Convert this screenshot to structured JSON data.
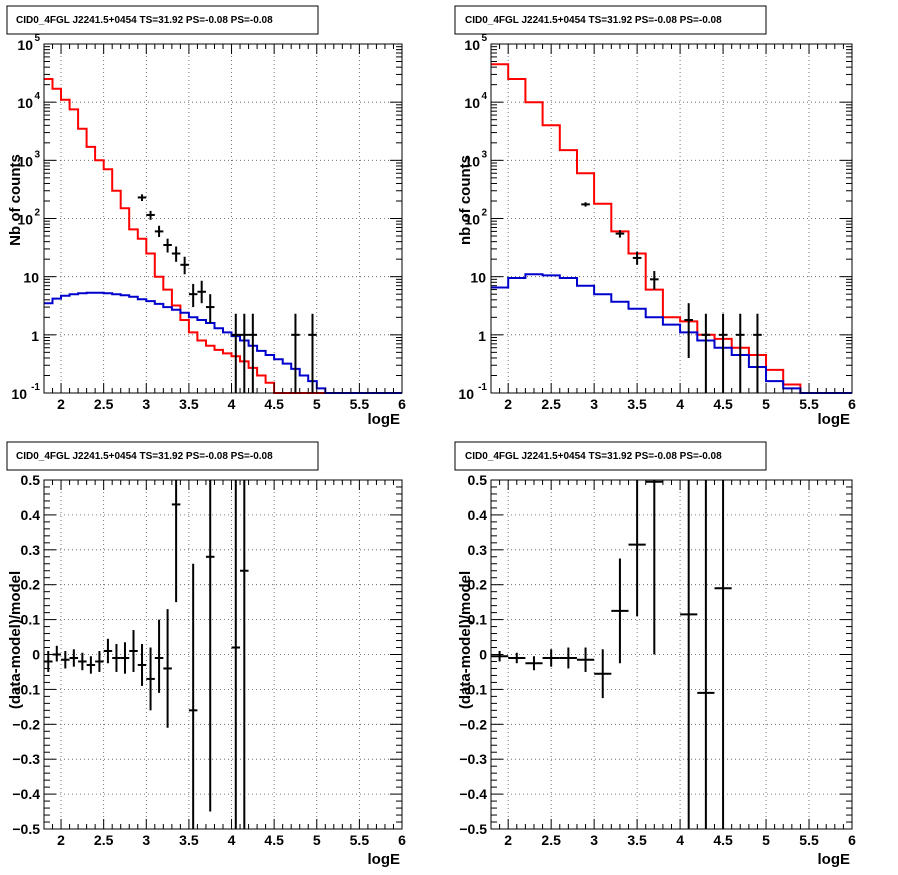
{
  "chart_data": [
    {
      "type": "line",
      "panel": "top-left",
      "title": "CID0_4FGL J2241.5+0454 TS=31.92 PS=-0.08 PS=-0.08",
      "xlabel": "logE",
      "ylabel": "Nb of counts",
      "xlim": [
        1.8,
        6.0
      ],
      "ylim": [
        0.1,
        100000
      ],
      "log_y": true,
      "grid": true,
      "x_ticks": [
        "2",
        "2.5",
        "3",
        "3.5",
        "4",
        "4.5",
        "5",
        "5.5",
        "6"
      ],
      "y_ticks": [
        {
          "base": "10",
          "exp": "-1"
        },
        {
          "base": "1",
          "exp": ""
        },
        {
          "base": "10",
          "exp": ""
        },
        {
          "base": "10",
          "exp": "2"
        },
        {
          "base": "10",
          "exp": "3"
        },
        {
          "base": "10",
          "exp": "4"
        },
        {
          "base": "10",
          "exp": "5"
        }
      ],
      "edges": [
        1.8,
        1.9,
        2.0,
        2.1,
        2.2,
        2.3,
        2.4,
        2.5,
        2.6,
        2.7,
        2.8,
        2.9,
        3.0,
        3.1,
        3.2,
        3.3,
        3.4,
        3.5,
        3.6,
        3.7,
        3.8,
        3.9,
        4.0,
        4.1,
        4.2,
        4.3,
        4.4,
        4.5,
        4.6,
        4.7,
        4.8,
        4.9,
        5.0,
        5.1,
        5.2,
        5.3,
        5.4,
        5.5,
        5.6,
        5.7,
        5.8,
        5.9,
        6.0
      ],
      "series": [
        {
          "color": "#ff0000",
          "kind": "step",
          "values": [
            25000,
            17000,
            11000,
            7500,
            3500,
            1700,
            1000,
            700,
            300,
            150,
            65,
            45,
            25,
            10,
            6,
            3.2,
            1.8,
            1.1,
            0.8,
            0.65,
            0.55,
            0.48,
            0.43,
            0.35,
            0.27,
            0.2,
            0.15,
            0.1,
            0.1,
            0.1,
            0.1,
            0.1,
            0.1,
            0.1,
            0.1,
            0.1,
            0.1,
            0.1,
            0.1,
            0.1,
            0.1,
            0.1
          ]
        },
        {
          "color": "#0000cc",
          "kind": "step",
          "values": [
            3.5,
            4.2,
            4.7,
            5.0,
            5.2,
            5.3,
            5.3,
            5.2,
            5.0,
            4.8,
            4.5,
            4.1,
            3.8,
            3.4,
            3.0,
            2.7,
            2.4,
            2.0,
            1.8,
            1.6,
            1.3,
            1.1,
            0.95,
            0.8,
            0.65,
            0.53,
            0.45,
            0.38,
            0.32,
            0.26,
            0.2,
            0.16,
            0.12,
            0.1,
            0.1,
            0.1,
            0.1,
            0.1,
            0.1,
            0.1,
            0.1,
            0.1
          ]
        },
        {
          "color": "#000000",
          "kind": "points",
          "points": [
            {
              "x": 2.95,
              "y": 230,
              "lo": 200,
              "hi": 260
            },
            {
              "x": 3.05,
              "y": 115,
              "lo": 95,
              "hi": 135
            },
            {
              "x": 3.15,
              "y": 60,
              "lo": 48,
              "hi": 75
            },
            {
              "x": 3.25,
              "y": 35,
              "lo": 26,
              "hi": 45
            },
            {
              "x": 3.35,
              "y": 25,
              "lo": 18,
              "hi": 33
            },
            {
              "x": 3.45,
              "y": 16,
              "lo": 11,
              "hi": 22
            },
            {
              "x": 3.55,
              "y": 5.0,
              "lo": 3.0,
              "hi": 7.5
            },
            {
              "x": 3.65,
              "y": 5.5,
              "lo": 3.5,
              "hi": 8.5
            },
            {
              "x": 3.75,
              "y": 3.0,
              "lo": 1.6,
              "hi": 5.0
            },
            {
              "x": 4.05,
              "y": 1.0,
              "lo": 0.1,
              "hi": 2.3
            },
            {
              "x": 4.15,
              "y": 1.0,
              "lo": 0.1,
              "hi": 2.3
            },
            {
              "x": 4.25,
              "y": 1.0,
              "lo": 0.1,
              "hi": 2.3
            },
            {
              "x": 4.75,
              "y": 1.0,
              "lo": 0.1,
              "hi": 2.3
            },
            {
              "x": 4.95,
              "y": 1.0,
              "lo": 0.1,
              "hi": 2.3
            }
          ]
        }
      ]
    },
    {
      "type": "line",
      "panel": "top-right",
      "title": "CID0_4FGL J2241.5+0454 TS=31.92 PS=-0.08 PS=-0.08",
      "xlabel": "logE",
      "ylabel": "nb of counts",
      "xlim": [
        1.8,
        6.0
      ],
      "ylim": [
        0.1,
        100000
      ],
      "log_y": true,
      "grid": true,
      "x_ticks": [
        "2",
        "2.5",
        "3",
        "3.5",
        "4",
        "4.5",
        "5",
        "5.5",
        "6"
      ],
      "y_ticks": [
        {
          "base": "10",
          "exp": "-1"
        },
        {
          "base": "1",
          "exp": ""
        },
        {
          "base": "10",
          "exp": ""
        },
        {
          "base": "10",
          "exp": "2"
        },
        {
          "base": "10",
          "exp": "3"
        },
        {
          "base": "10",
          "exp": "4"
        },
        {
          "base": "10",
          "exp": "5"
        }
      ],
      "edges": [
        1.8,
        2.0,
        2.2,
        2.4,
        2.6,
        2.8,
        3.0,
        3.2,
        3.4,
        3.6,
        3.8,
        4.0,
        4.2,
        4.4,
        4.6,
        4.8,
        5.0,
        5.2,
        5.4,
        5.6,
        5.8,
        6.0
      ],
      "series": [
        {
          "color": "#ff0000",
          "kind": "step",
          "values": [
            45000,
            25000,
            10000,
            4000,
            1500,
            600,
            180,
            60,
            25,
            6,
            2,
            1.7,
            1.0,
            0.85,
            0.6,
            0.45,
            0.25,
            0.14,
            0.1,
            0.1,
            0.1
          ]
        },
        {
          "color": "#0000cc",
          "kind": "step",
          "values": [
            6.5,
            9.5,
            11,
            10.5,
            9.5,
            7,
            5,
            3.7,
            2.8,
            2.0,
            1.5,
            1.1,
            0.8,
            0.6,
            0.45,
            0.28,
            0.16,
            0.12,
            0.1,
            0.1,
            0.1
          ]
        },
        {
          "color": "#000000",
          "kind": "points",
          "points": [
            {
              "x": 2.9,
              "y": 175,
              "lo": 160,
              "hi": 190
            },
            {
              "x": 3.3,
              "y": 55,
              "lo": 47,
              "hi": 63
            },
            {
              "x": 3.5,
              "y": 21,
              "lo": 16,
              "hi": 27
            },
            {
              "x": 3.7,
              "y": 9,
              "lo": 6,
              "hi": 12.5
            },
            {
              "x": 4.1,
              "y": 1.8,
              "lo": 0.4,
              "hi": 3.5
            },
            {
              "x": 4.3,
              "y": 1.0,
              "lo": 0.1,
              "hi": 2.3
            },
            {
              "x": 4.5,
              "y": 1.0,
              "lo": 0.1,
              "hi": 2.3
            },
            {
              "x": 4.7,
              "y": 1.0,
              "lo": 0.1,
              "hi": 2.3
            },
            {
              "x": 4.9,
              "y": 1.0,
              "lo": 0.1,
              "hi": 2.3
            }
          ]
        }
      ]
    },
    {
      "type": "scatter",
      "panel": "bottom-left",
      "title": "CID0_4FGL J2241.5+0454 TS=31.92 PS=-0.08 PS=-0.08",
      "xlabel": "logE",
      "ylabel": "(data-model)/model",
      "xlim": [
        1.8,
        6.0
      ],
      "ylim": [
        -0.5,
        0.5
      ],
      "grid": true,
      "x_ticks": [
        "2",
        "2.5",
        "3",
        "3.5",
        "4",
        "4.5",
        "5",
        "5.5",
        "6"
      ],
      "y_ticks": [
        "−0.5",
        "−0.4",
        "−0.3",
        "−0.2",
        "−0.1",
        "0",
        "0.1",
        "0.2",
        "0.3",
        "0.4",
        "0.5"
      ],
      "bin_width": 0.1,
      "series": [
        {
          "color": "#000000",
          "kind": "errorbars",
          "points": [
            {
              "x": 1.85,
              "y": -0.02,
              "lo": -0.05,
              "hi": 0.01
            },
            {
              "x": 1.95,
              "y": 0.0,
              "lo": -0.02,
              "hi": 0.025
            },
            {
              "x": 2.05,
              "y": -0.015,
              "lo": -0.04,
              "hi": 0.01
            },
            {
              "x": 2.15,
              "y": -0.01,
              "lo": -0.035,
              "hi": 0.015
            },
            {
              "x": 2.25,
              "y": -0.02,
              "lo": -0.045,
              "hi": 0.005
            },
            {
              "x": 2.35,
              "y": -0.03,
              "lo": -0.055,
              "hi": -0.005
            },
            {
              "x": 2.45,
              "y": -0.02,
              "lo": -0.05,
              "hi": 0.01
            },
            {
              "x": 2.55,
              "y": 0.01,
              "lo": -0.025,
              "hi": 0.045
            },
            {
              "x": 2.65,
              "y": -0.01,
              "lo": -0.05,
              "hi": 0.03
            },
            {
              "x": 2.75,
              "y": -0.01,
              "lo": -0.055,
              "hi": 0.035
            },
            {
              "x": 2.85,
              "y": 0.01,
              "lo": -0.05,
              "hi": 0.07
            },
            {
              "x": 2.95,
              "y": -0.03,
              "lo": -0.09,
              "hi": 0.03
            },
            {
              "x": 3.05,
              "y": -0.07,
              "lo": -0.16,
              "hi": 0.02
            },
            {
              "x": 3.15,
              "y": -0.01,
              "lo": -0.11,
              "hi": 0.1
            },
            {
              "x": 3.25,
              "y": -0.04,
              "lo": -0.21,
              "hi": 0.13
            },
            {
              "x": 3.35,
              "y": 0.43,
              "lo": 0.15,
              "hi": 0.5
            },
            {
              "x": 3.55,
              "y": -0.16,
              "lo": -0.5,
              "hi": 0.26
            },
            {
              "x": 3.75,
              "y": 0.28,
              "lo": -0.45,
              "hi": 0.5
            },
            {
              "x": 4.05,
              "y": 0.02,
              "lo": -0.5,
              "hi": 0.5
            },
            {
              "x": 4.15,
              "y": 0.24,
              "lo": -0.5,
              "hi": 0.5
            }
          ]
        }
      ]
    },
    {
      "type": "scatter",
      "panel": "bottom-right",
      "title": "CID0_4FGL J2241.5+0454 TS=31.92 PS=-0.08 PS=-0.08",
      "xlabel": "logE",
      "ylabel": "(data-model)/model",
      "xlim": [
        1.8,
        6.0
      ],
      "ylim": [
        -0.5,
        0.5
      ],
      "grid": true,
      "x_ticks": [
        "2",
        "2.5",
        "3",
        "3.5",
        "4",
        "4.5",
        "5",
        "5.5",
        "6"
      ],
      "y_ticks": [
        "−0.5",
        "−0.4",
        "−0.3",
        "−0.2",
        "−0.1",
        "0",
        "0.1",
        "0.2",
        "0.3",
        "0.4",
        "0.5"
      ],
      "bin_width": 0.2,
      "series": [
        {
          "color": "#000000",
          "kind": "errorbars",
          "points": [
            {
              "x": 1.9,
              "y": -0.005,
              "lo": -0.02,
              "hi": 0.01
            },
            {
              "x": 2.1,
              "y": -0.01,
              "lo": -0.025,
              "hi": 0.005
            },
            {
              "x": 2.3,
              "y": -0.025,
              "lo": -0.045,
              "hi": -0.005
            },
            {
              "x": 2.5,
              "y": -0.01,
              "lo": -0.035,
              "hi": 0.015
            },
            {
              "x": 2.7,
              "y": -0.01,
              "lo": -0.04,
              "hi": 0.02
            },
            {
              "x": 2.9,
              "y": -0.015,
              "lo": -0.05,
              "hi": 0.02
            },
            {
              "x": 3.1,
              "y": -0.055,
              "lo": -0.125,
              "hi": 0.015
            },
            {
              "x": 3.3,
              "y": 0.125,
              "lo": -0.025,
              "hi": 0.275
            },
            {
              "x": 3.5,
              "y": 0.315,
              "lo": 0.11,
              "hi": 0.5
            },
            {
              "x": 3.7,
              "y": 0.495,
              "lo": 0.0,
              "hi": 0.5
            },
            {
              "x": 4.1,
              "y": 0.115,
              "lo": -0.5,
              "hi": 0.5
            },
            {
              "x": 4.3,
              "y": -0.11,
              "lo": -0.5,
              "hi": 0.5
            },
            {
              "x": 4.5,
              "y": 0.19,
              "lo": -0.5,
              "hi": 0.5
            }
          ]
        }
      ]
    }
  ]
}
